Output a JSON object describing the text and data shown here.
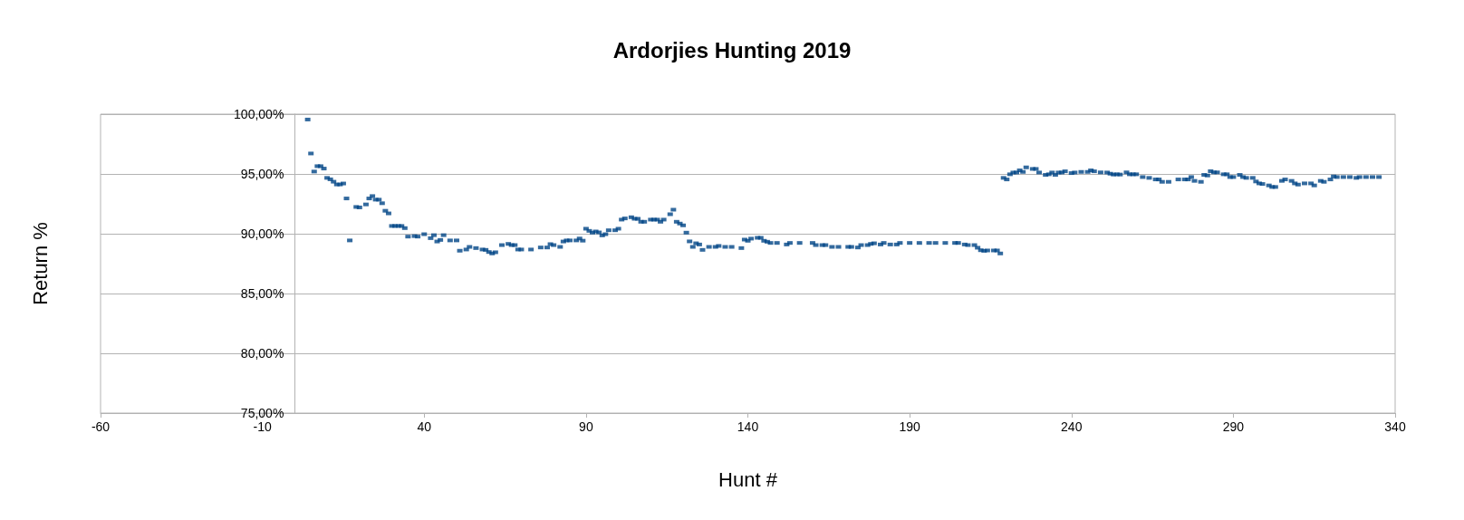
{
  "chart_data": {
    "type": "scatter",
    "title": "Ardorjies Hunting 2019",
    "xlabel": "Hunt #",
    "ylabel": "Return %",
    "xlim": [
      -60,
      340
    ],
    "xticks": [
      -60,
      -10,
      40,
      90,
      140,
      190,
      240,
      290,
      340
    ],
    "ylim": [
      75,
      100
    ],
    "yticks": [
      {
        "value": 75,
        "label": "75,00%"
      },
      {
        "value": 80,
        "label": "80,00%"
      },
      {
        "value": 85,
        "label": "85,00%"
      },
      {
        "value": 90,
        "label": "90,00%"
      },
      {
        "value": 95,
        "label": "95,00%"
      },
      {
        "value": 100,
        "label": "100,00%"
      }
    ],
    "grid": "y",
    "marker": "square",
    "series": [
      {
        "color": "#004586",
        "x": [
          4,
          5,
          6,
          7,
          8,
          9,
          10,
          11,
          12,
          13,
          14,
          15,
          16,
          17,
          19,
          20,
          22,
          23,
          24,
          25,
          26,
          27,
          28,
          29,
          30,
          31,
          32,
          33,
          34,
          35,
          37,
          38,
          40,
          42,
          43,
          44,
          45,
          46,
          48,
          50,
          51,
          53,
          54,
          56,
          58,
          59,
          60,
          61,
          62,
          64,
          66,
          67,
          68,
          69,
          70,
          73,
          76,
          78,
          79,
          80,
          82,
          83,
          84,
          85,
          87,
          88,
          89,
          90,
          91,
          92,
          93,
          94,
          95,
          96,
          97,
          99,
          100,
          101,
          102,
          104,
          105,
          106,
          107,
          108,
          110,
          111,
          112,
          113,
          114,
          116,
          117,
          118,
          119,
          120,
          121,
          122,
          123,
          124,
          125,
          126,
          128,
          130,
          131,
          133,
          135,
          138,
          139,
          140,
          141,
          143,
          144,
          145,
          146,
          147,
          149,
          152,
          153,
          156,
          160,
          161,
          163,
          164,
          166,
          168,
          171,
          172,
          174,
          175,
          177,
          178,
          179,
          181,
          182,
          184,
          186,
          187,
          190,
          193,
          196,
          198,
          201,
          204,
          205,
          207,
          208,
          210,
          211,
          212,
          213,
          214,
          216,
          217,
          218,
          219,
          220,
          221,
          222,
          223,
          224,
          225,
          226,
          228,
          229,
          230,
          232,
          233,
          234,
          235,
          236,
          237,
          238,
          240,
          241,
          243,
          245,
          246,
          247,
          249,
          251,
          252,
          253,
          254,
          255,
          257,
          258,
          259,
          260,
          262,
          264,
          266,
          267,
          268,
          270,
          273,
          275,
          276,
          277,
          278,
          280,
          281,
          282,
          283,
          284,
          285,
          287,
          288,
          289,
          290,
          292,
          293,
          294,
          296,
          297,
          298,
          299,
          301,
          302,
          303,
          305,
          306,
          308,
          309,
          310,
          312,
          314,
          315,
          317,
          318,
          320,
          321,
          322,
          324,
          326,
          328,
          329,
          331,
          333,
          335
        ],
        "values": [
          99.55,
          96.71,
          95.2,
          95.65,
          95.65,
          95.45,
          94.67,
          94.55,
          94.35,
          94.12,
          94.12,
          94.2,
          92.95,
          89.44,
          92.24,
          92.2,
          92.45,
          92.95,
          93.15,
          92.85,
          92.85,
          92.55,
          91.92,
          91.7,
          90.65,
          90.65,
          90.65,
          90.65,
          90.47,
          89.76,
          89.8,
          89.76,
          89.96,
          89.63,
          89.88,
          89.35,
          89.48,
          89.88,
          89.44,
          89.44,
          88.58,
          88.68,
          88.9,
          88.8,
          88.68,
          88.65,
          88.47,
          88.35,
          88.45,
          89.05,
          89.15,
          89.05,
          89.05,
          88.68,
          88.68,
          88.68,
          88.85,
          88.85,
          89.13,
          89.05,
          88.9,
          89.35,
          89.44,
          89.44,
          89.44,
          89.6,
          89.42,
          90.42,
          90.24,
          90.09,
          90.19,
          90.11,
          89.86,
          89.96,
          90.29,
          90.29,
          90.42,
          91.18,
          91.28,
          91.38,
          91.25,
          91.25,
          91.0,
          91.0,
          91.18,
          91.18,
          91.18,
          91.0,
          91.18,
          91.63,
          92.01,
          91.0,
          90.85,
          90.7,
          90.09,
          89.36,
          88.9,
          89.2,
          89.1,
          88.65,
          88.9,
          88.9,
          88.98,
          88.9,
          88.9,
          88.8,
          89.51,
          89.41,
          89.59,
          89.66,
          89.66,
          89.41,
          89.33,
          89.23,
          89.23,
          89.1,
          89.23,
          89.23,
          89.23,
          89.05,
          89.05,
          89.05,
          88.9,
          88.9,
          88.9,
          88.9,
          88.85,
          89.05,
          89.05,
          89.15,
          89.2,
          89.1,
          89.23,
          89.1,
          89.1,
          89.23,
          89.23,
          89.23,
          89.23,
          89.23,
          89.23,
          89.23,
          89.23,
          89.1,
          89.05,
          89.05,
          88.83,
          88.62,
          88.57,
          88.6,
          88.6,
          88.6,
          88.35,
          94.67,
          94.54,
          94.97,
          95.12,
          95.12,
          95.3,
          95.17,
          95.55,
          95.42,
          95.42,
          95.12,
          94.92,
          94.97,
          95.12,
          94.92,
          95.12,
          95.12,
          95.22,
          95.07,
          95.12,
          95.17,
          95.17,
          95.3,
          95.22,
          95.13,
          95.12,
          95.02,
          94.95,
          94.97,
          94.95,
          95.13,
          94.97,
          94.97,
          94.97,
          94.74,
          94.67,
          94.54,
          94.54,
          94.34,
          94.34,
          94.54,
          94.54,
          94.54,
          94.74,
          94.42,
          94.34,
          94.92,
          94.87,
          95.23,
          95.13,
          95.13,
          94.97,
          94.97,
          94.74,
          94.74,
          94.92,
          94.74,
          94.67,
          94.67,
          94.37,
          94.21,
          94.16,
          94.04,
          93.91,
          93.91,
          94.42,
          94.54,
          94.42,
          94.21,
          94.11,
          94.21,
          94.21,
          94.04,
          94.42,
          94.34,
          94.54,
          94.79,
          94.74,
          94.74,
          94.74,
          94.67,
          94.74,
          94.74,
          94.74,
          94.74
        ]
      }
    ]
  }
}
